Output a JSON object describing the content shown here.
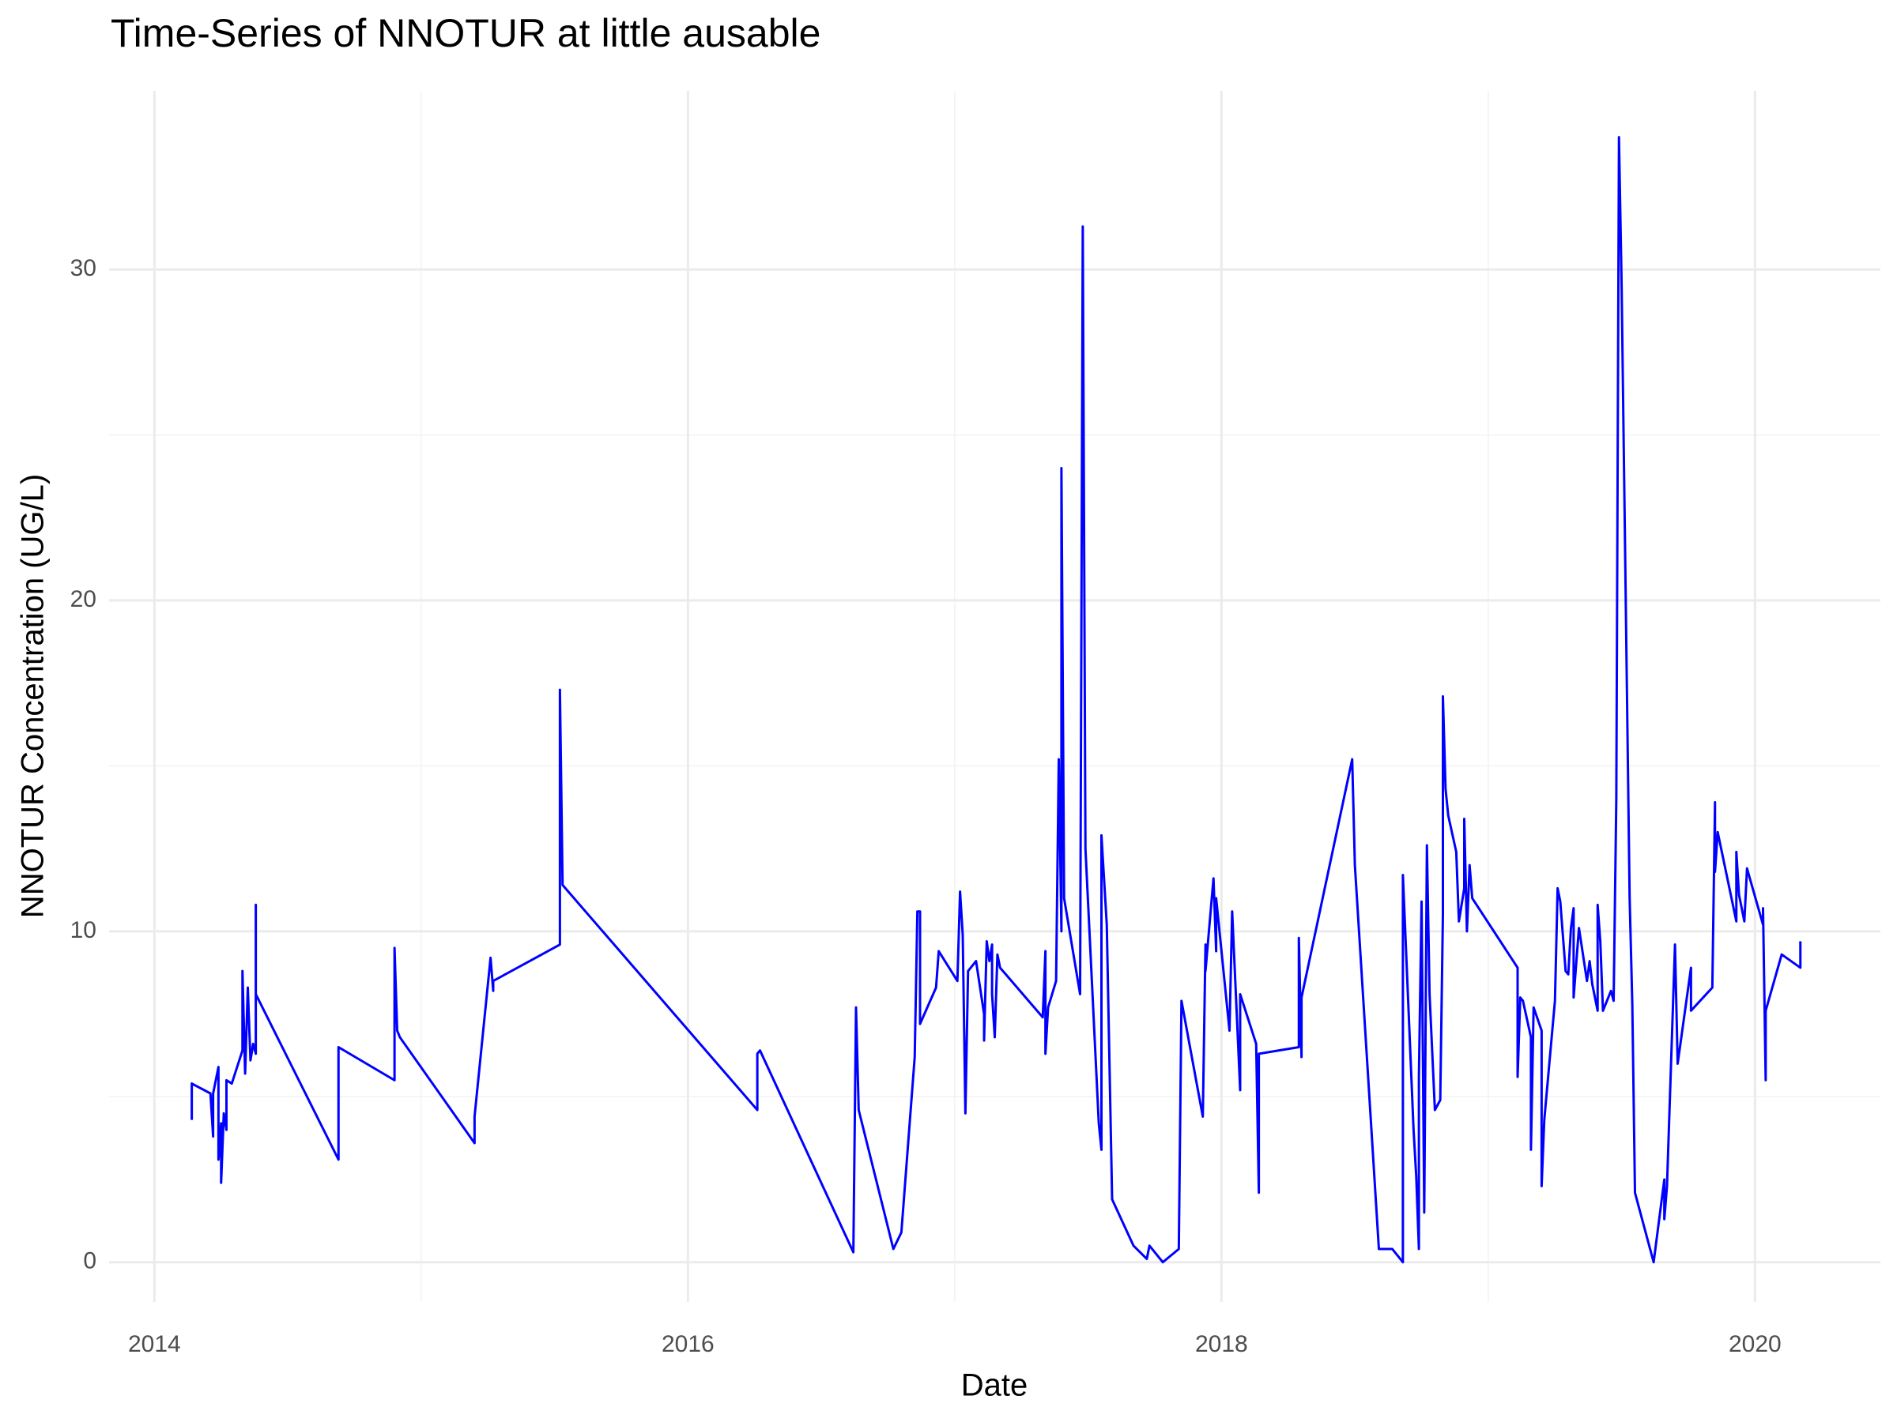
{
  "chart_data": {
    "type": "line",
    "title": "Time-Series of NNOTUR at little ausable",
    "x_label": "Date",
    "y_label": "NNOTUR Concentration (UG/L)",
    "color": "#0000ff",
    "grid": true,
    "xlim": [
      2013.83,
      2020.47
    ],
    "ylim": [
      -1.2,
      35.4
    ],
    "xticks": [
      2014,
      2016,
      2018,
      2020
    ],
    "yticks": [
      0,
      10,
      20,
      30
    ],
    "x_minor_grid": [
      2015,
      2017,
      2019
    ],
    "y_minor_grid": [
      5,
      15,
      25
    ],
    "x": [
      2014.14,
      2014.14,
      2014.21,
      2014.22,
      2014.22,
      2014.24,
      2014.24,
      2014.25,
      2014.25,
      2014.26,
      2014.27,
      2014.27,
      2014.29,
      2014.33,
      2014.33,
      2014.34,
      2014.35,
      2014.36,
      2014.37,
      2014.38,
      2014.38,
      2014.38,
      2014.69,
      2014.69,
      2014.9,
      2014.9,
      2014.91,
      2014.92,
      2015.2,
      2015.2,
      2015.21,
      2015.26,
      2015.27,
      2015.27,
      2015.52,
      2015.52,
      2015.53,
      2016.26,
      2016.26,
      2016.27,
      2016.62,
      2016.63,
      2016.64,
      2016.77,
      2016.8,
      2016.85,
      2016.86,
      2016.87,
      2016.87,
      2016.93,
      2016.94,
      2017.01,
      2017.02,
      2017.03,
      2017.04,
      2017.05,
      2017.08,
      2017.11,
      2017.11,
      2017.12,
      2017.13,
      2017.14,
      2017.14,
      2017.15,
      2017.16,
      2017.17,
      2017.33,
      2017.34,
      2017.34,
      2017.35,
      2017.38,
      2017.39,
      2017.4,
      2017.4,
      2017.41,
      2017.47,
      2017.48,
      2017.49,
      2017.54,
      2017.55,
      2017.55,
      2017.57,
      2017.59,
      2017.67,
      2017.72,
      2017.73,
      2017.78,
      2017.84,
      2017.85,
      2017.93,
      2017.94,
      2017.94,
      2017.97,
      2017.98,
      2017.98,
      2018.03,
      2018.04,
      2018.07,
      2018.07,
      2018.13,
      2018.14,
      2018.14,
      2018.29,
      2018.29,
      2018.3,
      2018.3,
      2018.49,
      2018.5,
      2018.59,
      2018.64,
      2018.68,
      2018.68,
      2018.72,
      2018.73,
      2018.74,
      2018.74,
      2018.75,
      2018.76,
      2018.77,
      2018.78,
      2018.8,
      2018.82,
      2018.83,
      2018.83,
      2018.84,
      2018.85,
      2018.88,
      2018.89,
      2018.91,
      2018.91,
      2018.92,
      2018.93,
      2018.94,
      2019.11,
      2019.11,
      2019.12,
      2019.13,
      2019.16,
      2019.16,
      2019.17,
      2019.2,
      2019.2,
      2019.21,
      2019.25,
      2019.26,
      2019.27,
      2019.29,
      2019.3,
      2019.31,
      2019.32,
      2019.32,
      2019.34,
      2019.37,
      2019.38,
      2019.39,
      2019.41,
      2019.41,
      2019.42,
      2019.43,
      2019.46,
      2019.47,
      2019.48,
      2019.49,
      2019.5,
      2019.53,
      2019.54,
      2019.55,
      2019.62,
      2019.66,
      2019.66,
      2019.67,
      2019.7,
      2019.71,
      2019.76,
      2019.76,
      2019.84,
      2019.85,
      2019.85,
      2019.86,
      2019.93,
      2019.93,
      2019.94,
      2019.96,
      2019.97,
      2020.03,
      2020.03,
      2020.04,
      2020.04,
      2020.1,
      2020.17,
      2020.17
    ],
    "values": [
      4.3,
      5.4,
      5.1,
      3.8,
      5.1,
      5.9,
      3.1,
      4.2,
      2.4,
      4.5,
      4.0,
      5.5,
      5.4,
      6.4,
      8.8,
      5.7,
      8.3,
      6.1,
      6.6,
      6.3,
      10.8,
      8.1,
      3.1,
      6.5,
      5.5,
      9.5,
      7.0,
      6.8,
      3.6,
      4.4,
      5.2,
      9.2,
      8.2,
      8.5,
      9.6,
      17.3,
      11.4,
      4.6,
      6.3,
      6.4,
      0.3,
      7.7,
      4.6,
      0.4,
      0.9,
      6.2,
      10.6,
      10.6,
      7.2,
      8.3,
      9.4,
      8.5,
      11.2,
      9.9,
      4.5,
      8.8,
      9.1,
      7.5,
      6.7,
      9.7,
      9.1,
      9.6,
      8.1,
      6.8,
      9.3,
      8.9,
      7.4,
      9.4,
      6.3,
      7.7,
      8.5,
      15.2,
      10.0,
      24.0,
      11.0,
      8.1,
      31.3,
      12.5,
      4.2,
      3.4,
      12.9,
      10.2,
      1.9,
      0.5,
      0.1,
      0.5,
      0.0,
      0.4,
      7.9,
      4.4,
      9.6,
      8.8,
      11.6,
      9.4,
      11.0,
      7.0,
      10.6,
      5.2,
      8.1,
      6.6,
      2.1,
      6.3,
      6.5,
      9.8,
      6.2,
      8.0,
      15.2,
      12.0,
      0.4,
      0.4,
      0.0,
      11.7,
      4.0,
      2.6,
      0.4,
      5.6,
      10.9,
      1.5,
      12.6,
      8.1,
      4.6,
      4.9,
      10.5,
      17.1,
      14.3,
      13.5,
      12.4,
      10.3,
      11.3,
      13.4,
      10.0,
      12.0,
      11.0,
      8.9,
      5.6,
      8.0,
      7.9,
      6.8,
      3.4,
      7.7,
      7.0,
      2.3,
      4.3,
      7.9,
      11.3,
      10.9,
      8.8,
      8.7,
      10.1,
      10.7,
      8.0,
      10.1,
      8.5,
      9.1,
      8.4,
      7.6,
      10.8,
      9.7,
      7.6,
      8.2,
      7.9,
      14.0,
      34.0,
      29.5,
      11.0,
      7.8,
      2.1,
      0.0,
      2.5,
      1.3,
      2.3,
      9.6,
      6.0,
      8.9,
      7.6,
      8.3,
      13.9,
      11.8,
      13.0,
      10.3,
      12.4,
      11.1,
      10.3,
      11.9,
      10.2,
      10.7,
      5.5,
      7.6,
      9.3,
      8.9,
      9.7
    ]
  }
}
